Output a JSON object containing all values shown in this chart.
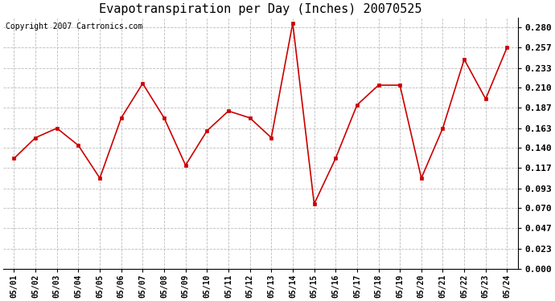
{
  "title": "Evapotranspiration per Day (Inches) 20070525",
  "copyright_text": "Copyright 2007 Cartronics.com",
  "dates": [
    "05/01",
    "05/02",
    "05/03",
    "05/04",
    "05/05",
    "05/06",
    "05/07",
    "05/08",
    "05/09",
    "05/10",
    "05/11",
    "05/12",
    "05/13",
    "05/14",
    "05/15",
    "05/16",
    "05/17",
    "05/18",
    "05/19",
    "05/20",
    "05/21",
    "05/22",
    "05/23",
    "05/24"
  ],
  "values": [
    0.128,
    0.152,
    0.163,
    0.143,
    0.105,
    0.175,
    0.215,
    0.175,
    0.12,
    0.16,
    0.183,
    0.175,
    0.152,
    0.285,
    0.075,
    0.128,
    0.19,
    0.213,
    0.213,
    0.105,
    0.163,
    0.243,
    0.197,
    0.257
  ],
  "line_color": "#cc0000",
  "marker_color": "#cc0000",
  "bg_color": "#ffffff",
  "grid_color": "#bbbbbb",
  "y_ticks": [
    0.0,
    0.023,
    0.047,
    0.07,
    0.093,
    0.117,
    0.14,
    0.163,
    0.187,
    0.21,
    0.233,
    0.257,
    0.28
  ],
  "ylim": [
    0.0,
    0.2917
  ],
  "title_fontsize": 11,
  "copyright_fontsize": 7,
  "xtick_fontsize": 7,
  "ytick_fontsize": 8
}
